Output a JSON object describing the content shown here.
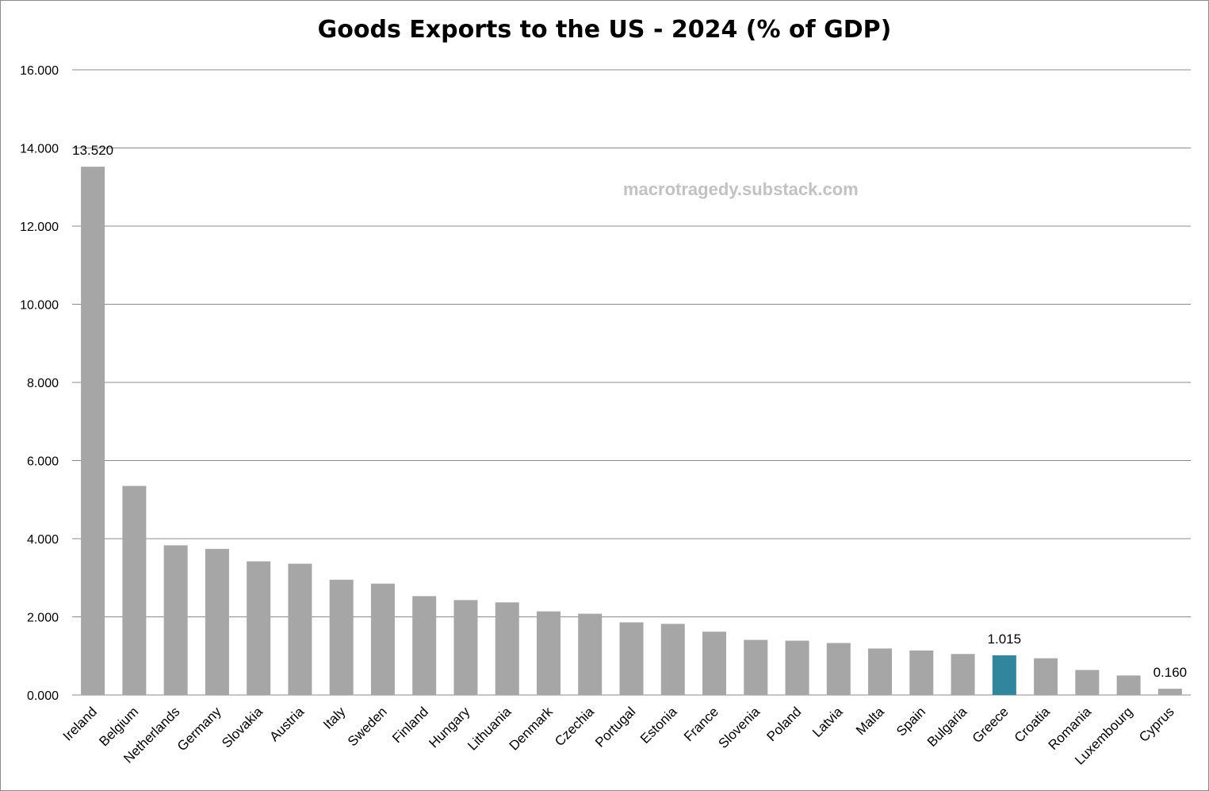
{
  "chart_data": {
    "type": "bar",
    "title": "Goods Exports to the US - 2024 (% of GDP)",
    "watermark": "macrotragedy.substack.com",
    "xlabel": "",
    "ylabel": "",
    "ylim": [
      0,
      16
    ],
    "yticks": [
      "0.000",
      "2.000",
      "4.000",
      "6.000",
      "8.000",
      "10.000",
      "12.000",
      "14.000",
      "16.000"
    ],
    "grid": true,
    "categories": [
      "Ireland",
      "Belgium",
      "Netherlands",
      "Germany",
      "Slovakia",
      "Austria",
      "Italy",
      "Sweden",
      "Finland",
      "Hungary",
      "Lithuania",
      "Denmark",
      "Czechia",
      "Portugal",
      "Estonia",
      "France",
      "Slovenia",
      "Poland",
      "Latvia",
      "Malta",
      "Spain",
      "Bulgaria",
      "Greece",
      "Croatia",
      "Romania",
      "Luxembourg",
      "Cyprus"
    ],
    "values": [
      13.52,
      5.35,
      3.83,
      3.74,
      3.42,
      3.36,
      2.95,
      2.85,
      2.53,
      2.43,
      2.37,
      2.14,
      2.08,
      1.86,
      1.82,
      1.62,
      1.41,
      1.39,
      1.33,
      1.19,
      1.14,
      1.05,
      1.015,
      0.94,
      0.64,
      0.5,
      0.16
    ],
    "highlight": "Greece",
    "colors": {
      "bar": "#a6a6a6",
      "highlight": "#31859c",
      "grid": "#8c8c8c"
    },
    "data_labels": [
      {
        "category": "Ireland",
        "text": "13.520"
      },
      {
        "category": "Greece",
        "text": "1.015"
      },
      {
        "category": "Cyprus",
        "text": "0.160"
      }
    ]
  }
}
